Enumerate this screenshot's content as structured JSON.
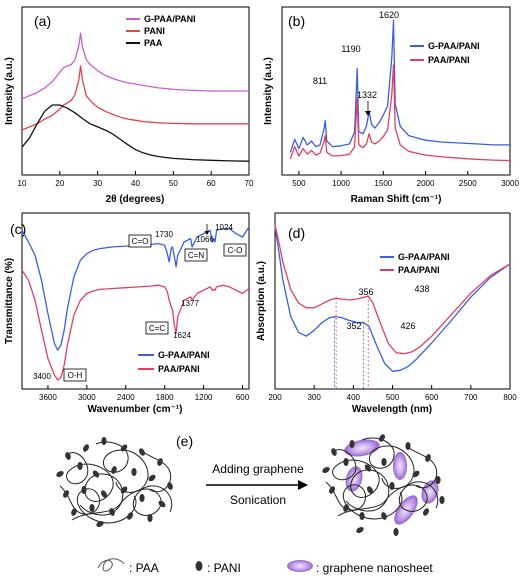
{
  "panels": [
    {
      "id": "a",
      "panel_label": "(a)",
      "chart_data": {
        "type": "line",
        "xlabel": "2θ (degrees)",
        "ylabel": "Intensity (a.u.)",
        "xlim": [
          10,
          70
        ],
        "xticks": [
          10,
          20,
          30,
          40,
          50,
          60,
          70
        ],
        "y_tick_labels": false,
        "legend_position": "top-right",
        "series": [
          {
            "name": "G-PAA/PANI",
            "color": "#c85ed0",
            "x": [
              10,
              12,
              14,
              16,
              18,
              20,
              21,
              22,
              23,
              24,
              25,
              25.5,
              26,
              27,
              28,
              29,
              30,
              32,
              34,
              36,
              38,
              40,
              42,
              44,
              46,
              48,
              50,
              55,
              60,
              65,
              70
            ],
            "y": [
              2.25,
              2.35,
              2.45,
              2.6,
              2.8,
              3.1,
              3.25,
              3.3,
              3.35,
              3.5,
              3.95,
              4.35,
              3.9,
              3.5,
              3.35,
              3.25,
              3.15,
              3.0,
              2.9,
              2.82,
              2.76,
              2.72,
              2.68,
              2.64,
              2.6,
              2.58,
              2.55,
              2.52,
              2.5,
              2.5,
              2.5
            ]
          },
          {
            "name": "PANI",
            "color": "#e5424a",
            "x": [
              10,
              12,
              14,
              16,
              18,
              20,
              21,
              22,
              23,
              24,
              25,
              25.5,
              26,
              27,
              28,
              29,
              30,
              32,
              34,
              36,
              38,
              40,
              42,
              44,
              46,
              48,
              50,
              55,
              60,
              65,
              70
            ],
            "y": [
              1.25,
              1.35,
              1.45,
              1.6,
              1.72,
              1.92,
              2.05,
              2.12,
              2.2,
              2.38,
              2.85,
              3.3,
              2.85,
              2.35,
              2.2,
              2.08,
              1.98,
              1.85,
              1.75,
              1.66,
              1.6,
              1.56,
              1.52,
              1.5,
              1.48,
              1.47,
              1.46,
              1.45,
              1.45,
              1.45,
              1.45
            ]
          },
          {
            "name": "PAA",
            "color": "#111111",
            "x": [
              10,
              12,
              14,
              16,
              18,
              20,
              22,
              24,
              26,
              28,
              30,
              32,
              34,
              36,
              38,
              40,
              42,
              44,
              46,
              48,
              50,
              55,
              60,
              65,
              70
            ],
            "y": [
              0.7,
              1.0,
              1.45,
              1.85,
              2.05,
              2.05,
              1.95,
              1.8,
              1.62,
              1.45,
              1.35,
              1.25,
              1.12,
              0.95,
              0.78,
              0.62,
              0.52,
              0.45,
              0.4,
              0.37,
              0.34,
              0.3,
              0.28,
              0.26,
              0.25
            ]
          }
        ]
      }
    },
    {
      "id": "b",
      "panel_label": "(b)",
      "chart_data": {
        "type": "line",
        "xlabel": "Raman Shift (cm⁻¹)",
        "ylabel": "Intensity (a.u.)",
        "xlim": [
          300,
          3000
        ],
        "xticks": [
          500,
          1000,
          1500,
          2000,
          2500,
          3000
        ],
        "y_tick_labels": false,
        "legend_position": "top-right",
        "annotations": [
          "811",
          "1190",
          "1332",
          "1620"
        ],
        "series": [
          {
            "name": "G-PAA/PANI",
            "color": "#3a5fe0",
            "x": [
              400,
              450,
              500,
              550,
              600,
              650,
              700,
              750,
              800,
              811,
              830,
              900,
              1000,
              1100,
              1160,
              1190,
              1210,
              1260,
              1300,
              1332,
              1360,
              1400,
              1450,
              1500,
              1550,
              1600,
              1620,
              1640,
              1700,
              1800,
              2000,
              2200,
              2400,
              2600,
              2800,
              3000
            ],
            "y": [
              0.9,
              1.6,
              1.1,
              1.7,
              1.3,
              1.5,
              1.2,
              1.3,
              2.2,
              2.6,
              1.5,
              1.2,
              1.25,
              1.35,
              2.0,
              5.4,
              2.0,
              1.9,
              2.3,
              3.1,
              2.4,
              2.2,
              2.5,
              2.9,
              3.4,
              6.0,
              8.0,
              3.5,
              2.3,
              1.8,
              1.55,
              1.45,
              1.4,
              1.35,
              1.3,
              1.3
            ]
          },
          {
            "name": "PAA/PANI",
            "color": "#e0405e",
            "x": [
              400,
              450,
              500,
              550,
              600,
              650,
              700,
              750,
              800,
              811,
              830,
              900,
              1000,
              1100,
              1160,
              1190,
              1210,
              1260,
              1300,
              1332,
              1360,
              1400,
              1450,
              1500,
              1550,
              1600,
              1620,
              1640,
              1700,
              1800,
              2000,
              2200,
              2400,
              2600,
              2800,
              3000
            ],
            "y": [
              0.55,
              1.2,
              0.7,
              1.1,
              0.8,
              1.0,
              0.75,
              0.85,
              1.5,
              1.8,
              0.9,
              0.7,
              0.72,
              0.8,
              1.2,
              3.8,
              1.3,
              1.15,
              1.35,
              1.9,
              1.45,
              1.35,
              1.5,
              1.75,
              2.1,
              4.0,
              5.6,
              2.2,
              1.3,
              0.95,
              0.75,
              0.65,
              0.58,
              0.52,
              0.48,
              0.45
            ]
          }
        ]
      }
    },
    {
      "id": "c",
      "panel_label": "(c)",
      "chart_data": {
        "type": "line",
        "xlabel": "Wavenumber (cm⁻¹)",
        "ylabel": "Transmittance (%)",
        "xlim": [
          4000,
          500
        ],
        "xticks": [
          3600,
          3000,
          2400,
          1800,
          1200,
          600
        ],
        "y_tick_labels": false,
        "legend_position": "bottom-right",
        "annotations": [
          "C=O",
          "1730",
          "1066",
          "1024",
          "C-O",
          "C=N",
          "1377",
          "C=C",
          "1624",
          "3400",
          "O-H"
        ],
        "series": [
          {
            "name": "G-PAA/PANI",
            "color": "#3a5fe0",
            "x": [
              4000,
              3900,
              3800,
              3700,
              3600,
              3500,
              3450,
              3400,
              3350,
              3300,
              3200,
              3100,
              3000,
              2900,
              2800,
              2600,
              2400,
              2200,
              2000,
              1900,
              1800,
              1760,
              1730,
              1700,
              1680,
              1650,
              1624,
              1600,
              1500,
              1400,
              1377,
              1300,
              1200,
              1100,
              1066,
              1040,
              1024,
              1000,
              900,
              800,
              700,
              600,
              500
            ],
            "y": [
              9.0,
              8.3,
              7.5,
              6.0,
              4.0,
              2.2,
              1.8,
              2.1,
              3.0,
              4.3,
              6.2,
              7.2,
              7.6,
              7.8,
              7.9,
              8.0,
              8.05,
              8.1,
              8.15,
              8.2,
              8.1,
              7.6,
              7.1,
              7.9,
              8.0,
              7.4,
              6.8,
              7.5,
              8.3,
              8.5,
              8.0,
              8.6,
              8.8,
              9.0,
              8.3,
              8.5,
              8.3,
              9.0,
              9.1,
              9.1,
              8.8,
              8.6,
              9.2
            ]
          },
          {
            "name": "PAA/PANI",
            "color": "#e0405e",
            "x": [
              4000,
              3900,
              3800,
              3700,
              3600,
              3500,
              3450,
              3400,
              3350,
              3300,
              3200,
              3100,
              3000,
              2900,
              2800,
              2600,
              2400,
              2200,
              2000,
              1900,
              1800,
              1760,
              1730,
              1700,
              1680,
              1650,
              1624,
              1600,
              1500,
              1400,
              1377,
              1300,
              1200,
              1100,
              1066,
              1040,
              1024,
              1000,
              900,
              800,
              700,
              600,
              500
            ],
            "y": [
              6.6,
              6.0,
              4.8,
              3.0,
              1.3,
              0.3,
              0.0,
              0.15,
              0.9,
              2.1,
              3.9,
              4.8,
              5.2,
              5.35,
              5.45,
              5.5,
              5.55,
              5.6,
              5.65,
              5.7,
              5.6,
              5.3,
              4.8,
              4.4,
              4.2,
              3.3,
              2.8,
              3.8,
              4.8,
              5.0,
              4.8,
              5.2,
              5.4,
              5.6,
              5.4,
              5.45,
              5.4,
              5.6,
              5.7,
              5.6,
              5.4,
              5.2,
              5.5
            ]
          }
        ]
      }
    },
    {
      "id": "d",
      "panel_label": "(d)",
      "chart_data": {
        "type": "line",
        "xlabel": "Wavelength (nm)",
        "ylabel": "Absorption (a.u.)",
        "xlim": [
          200,
          800
        ],
        "xticks": [
          200,
          300,
          400,
          500,
          600,
          700,
          800
        ],
        "y_tick_labels": false,
        "legend_position": "top-right",
        "annotations": [
          "356",
          "438",
          "352",
          "426"
        ],
        "series": [
          {
            "name": "G-PAA/PANI",
            "color": "#3a5fe0",
            "x": [
              200,
              210,
              220,
              240,
              260,
              280,
              300,
              320,
              340,
              352,
              370,
              390,
              410,
              426,
              440,
              460,
              480,
              500,
              520,
              540,
              560,
              600,
              650,
              700,
              750,
              800
            ],
            "y": [
              9.5,
              8.2,
              6.8,
              4.9,
              4.1,
              3.9,
              4.2,
              4.6,
              4.85,
              4.9,
              4.85,
              4.7,
              4.6,
              4.6,
              4.4,
              3.4,
              2.5,
              2.1,
              2.15,
              2.35,
              2.7,
              3.55,
              4.7,
              5.9,
              6.9,
              7.6
            ]
          },
          {
            "name": "PAA/PANI",
            "color": "#e0405e",
            "x": [
              200,
              210,
              220,
              240,
              260,
              280,
              300,
              320,
              340,
              356,
              370,
              390,
              410,
              438,
              450,
              470,
              490,
              510,
              530,
              550,
              570,
              600,
              650,
              700,
              750,
              800
            ],
            "y": [
              9.6,
              8.7,
              7.7,
              6.3,
              5.6,
              5.35,
              5.35,
              5.55,
              5.75,
              5.85,
              5.8,
              5.75,
              5.8,
              5.95,
              5.6,
              4.5,
              3.5,
              3.05,
              3.0,
              3.1,
              3.35,
              3.9,
              5.0,
              6.1,
              7.0,
              7.6
            ]
          }
        ]
      }
    }
  ],
  "scheme": {
    "panel_label": "(e)",
    "arrow_top_text": "Adding graphene",
    "arrow_bottom_text": "Sonication",
    "legend": [
      {
        "symbol": "paa-curve",
        "label": ": PAA"
      },
      {
        "symbol": "pani-dot",
        "label": ": PANI"
      },
      {
        "symbol": "graphene-ellipse",
        "label": ": graphene nanosheet"
      }
    ],
    "colors": {
      "pani": "#333333",
      "paa": "#222222",
      "graphene": "#b08ad8"
    }
  }
}
